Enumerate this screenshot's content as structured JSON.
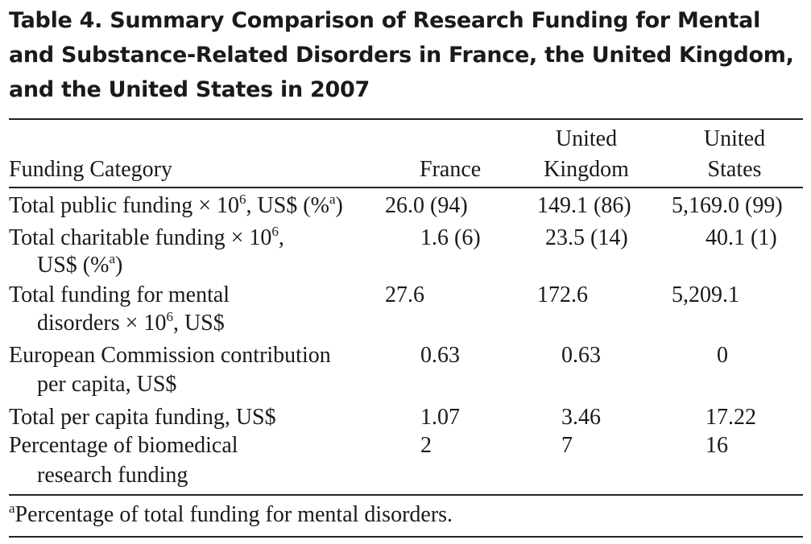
{
  "title": "Table 4. Summary Comparison of Research Funding for Mental and Substance-Related Disorders in France, the United Kingdom, and the United States in 2007",
  "headers": {
    "category": "Funding Category",
    "france": "France",
    "uk_1": "United",
    "uk_2": "Kingdom",
    "us_1": "United",
    "us_2": "States"
  },
  "rows": [
    {
      "label_1": "Total public funding × 10",
      "sup_1": "6",
      "label_2": ", US$ (%",
      "sup_2": "a",
      "label_3": ")",
      "france": "26.0 (94)",
      "uk": "149.1 (86)",
      "us": "5,169.0 (99)"
    },
    {
      "label_1": "Total charitable funding × 10",
      "sup_1": "6",
      "label_2": ",",
      "cont_1": "US$ (%",
      "cont_sup": "a",
      "cont_2": ")",
      "france": "1.6 (6)",
      "uk": "23.5 (14)",
      "us": "40.1 (1)"
    },
    {
      "label_1": "Total funding for mental",
      "cont_1": "disorders × 10",
      "cont_sup": "6",
      "cont_2": ", US$",
      "france": "27.6",
      "uk": "172.6",
      "us": "5,209.1"
    },
    {
      "label_1": "European Commission contribution",
      "cont_1": "per capita, US$",
      "france": "0.63",
      "uk": "0.63",
      "us": "0"
    },
    {
      "label_1": "Total per capita funding, US$",
      "france": "1.07",
      "uk": "3.46",
      "us": "17.22"
    },
    {
      "label_1": "Percentage of biomedical",
      "cont_1": "research funding",
      "france": "2",
      "uk": "7",
      "us": "16"
    }
  ],
  "footnote": {
    "marker": "a",
    "text": "Percentage of total funding for mental disorders."
  }
}
